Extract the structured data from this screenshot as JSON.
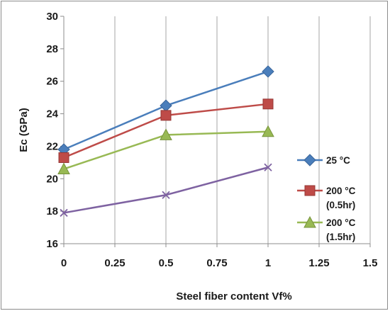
{
  "chart_data": {
    "type": "line",
    "title": "",
    "xlabel": "Steel fiber content Vf%",
    "ylabel": "Ec (GPa)",
    "xlim": [
      0,
      1.5
    ],
    "ylim": [
      16,
      30
    ],
    "xticks": [
      "0",
      "0.25",
      "0.5",
      "0.75",
      "1",
      "1.25",
      "1.5"
    ],
    "yticks": [
      "16",
      "18",
      "20",
      "22",
      "24",
      "26",
      "28",
      "30"
    ],
    "grid": "vertical",
    "legend_position": "right",
    "x": [
      0,
      0.5,
      1
    ],
    "series": [
      {
        "name": "25 °C",
        "legend_lines": [
          "25 °C"
        ],
        "values": [
          21.8,
          24.5,
          26.6
        ],
        "color": "#4a7ebb",
        "marker": "diamond"
      },
      {
        "name": "200 °C (0.5hr)",
        "legend_lines": [
          "200 °C",
          "(0.5hr)"
        ],
        "values": [
          21.3,
          23.9,
          24.6
        ],
        "color": "#be4b48",
        "marker": "square"
      },
      {
        "name": "200 °C (1.5hr)",
        "legend_lines": [
          "200 °C",
          "(1.5hr)"
        ],
        "values": [
          20.6,
          22.7,
          22.9
        ],
        "color": "#98b954",
        "marker": "triangle"
      },
      {
        "name": "",
        "legend_lines": [],
        "values": [
          17.9,
          19.0,
          20.7
        ],
        "color": "#7e62a1",
        "marker": "x"
      }
    ]
  }
}
